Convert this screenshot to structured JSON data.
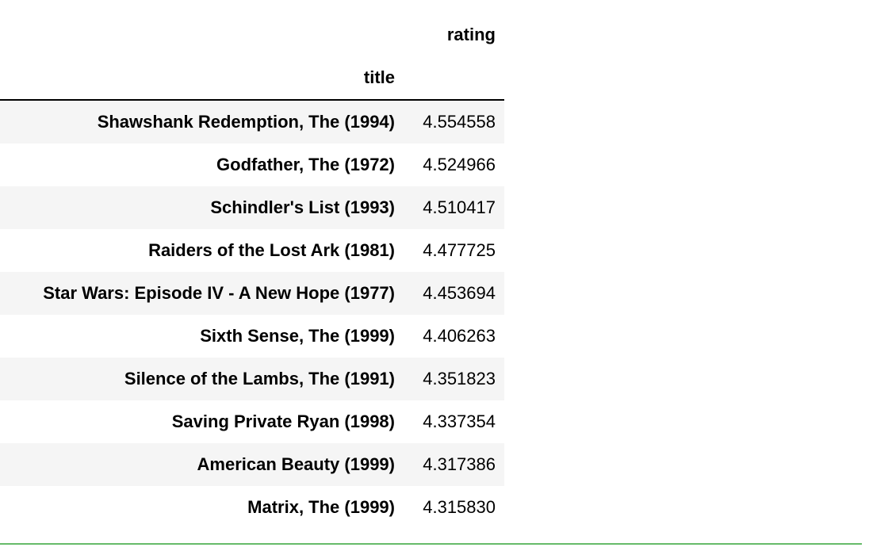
{
  "table": {
    "column_header": "rating",
    "index_name": "title",
    "rows": [
      {
        "title": "Shawshank Redemption, The (1994)",
        "rating": "4.554558"
      },
      {
        "title": "Godfather, The (1972)",
        "rating": "4.524966"
      },
      {
        "title": "Schindler's List (1993)",
        "rating": "4.510417"
      },
      {
        "title": "Raiders of the Lost Ark (1981)",
        "rating": "4.477725"
      },
      {
        "title": "Star Wars: Episode IV - A New Hope (1977)",
        "rating": "4.453694"
      },
      {
        "title": "Sixth Sense, The (1999)",
        "rating": "4.406263"
      },
      {
        "title": "Silence of the Lambs, The (1991)",
        "rating": "4.351823"
      },
      {
        "title": "Saving Private Ryan (1998)",
        "rating": "4.337354"
      },
      {
        "title": "American Beauty (1999)",
        "rating": "4.317386"
      },
      {
        "title": "Matrix, The (1999)",
        "rating": "4.315830"
      }
    ]
  },
  "colors": {
    "stripe": "#f5f5f5",
    "header_rule": "#000000",
    "cell_border": "#66bb6a"
  }
}
